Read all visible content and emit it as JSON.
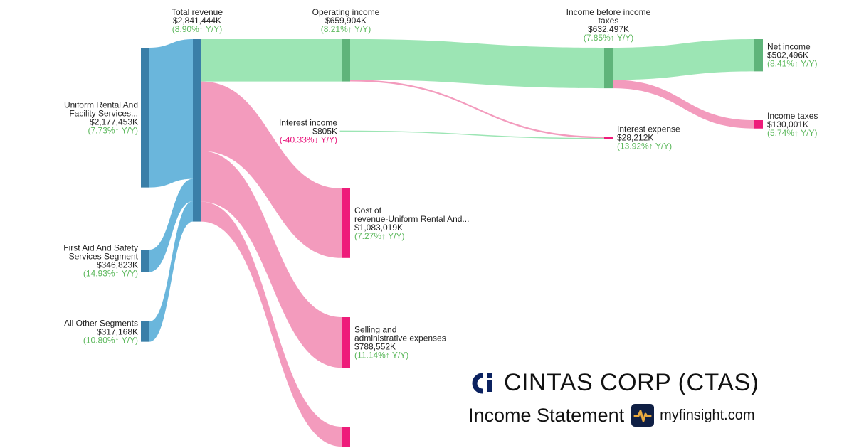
{
  "company": {
    "name": "CINTAS CORP (CTAS)",
    "subtitle": "Income Statement",
    "site": "myfinsight.com"
  },
  "colors": {
    "revenue_node": "#3a7fa8",
    "revenue_link": "#6ab6dc",
    "profit_node": "#5fb47a",
    "profit_link": "#9ce5b4",
    "cost_node": "#ee1c7a",
    "cost_link": "#f39bbd",
    "growth_up": "#5cb85c",
    "growth_down": "#e8127a",
    "brand_navy": "#0b2260",
    "icon_bg": "#0f1f44",
    "icon_accent": "#e9a93f"
  },
  "chart_data": {
    "type": "sankey",
    "units": "thousands USD",
    "nodes": [
      {
        "id": "uniform",
        "label_lines": [
          "Uniform Rental And",
          "Facility Services..."
        ],
        "value_text": "$2,177,453K",
        "growth_text": "(7.73%↑ Y/Y)",
        "growth_dir": "up",
        "value": 2177453
      },
      {
        "id": "firstaid",
        "label_lines": [
          "First Aid And Safety",
          "Services Segment"
        ],
        "value_text": "$346,823K",
        "growth_text": "(14.93%↑ Y/Y)",
        "growth_dir": "up",
        "value": 346823
      },
      {
        "id": "other",
        "label_lines": [
          "All Other Segments"
        ],
        "value_text": "$317,168K",
        "growth_text": "(10.80%↑ Y/Y)",
        "growth_dir": "up",
        "value": 317168
      },
      {
        "id": "revenue",
        "label_lines": [
          "Total revenue"
        ],
        "value_text": "$2,841,444K",
        "growth_text": "(8.90%↑ Y/Y)",
        "growth_dir": "up",
        "value": 2841444
      },
      {
        "id": "opinc",
        "label_lines": [
          "Operating income"
        ],
        "value_text": "$659,904K",
        "growth_text": "(8.21%↑ Y/Y)",
        "growth_dir": "up",
        "value": 659904
      },
      {
        "id": "intinc",
        "label_lines": [
          "Interest income"
        ],
        "value_text": "$805K",
        "growth_text": "(-40.33%↓ Y/Y)",
        "growth_dir": "down",
        "value": 805
      },
      {
        "id": "cor",
        "label_lines": [
          "Cost of",
          "revenue-Uniform Rental And..."
        ],
        "value_text": "$1,083,019K",
        "growth_text": "(7.27%↑ Y/Y)",
        "growth_dir": "up",
        "value": 1083019
      },
      {
        "id": "sga",
        "label_lines": [
          "Selling and",
          "administrative expenses"
        ],
        "value_text": "$788,552K",
        "growth_text": "(11.14%↑ Y/Y)",
        "growth_dir": "up",
        "value": 788552
      },
      {
        "id": "cor2",
        "label_lines": [],
        "value_text": "",
        "growth_text": "",
        "growth_dir": "up",
        "value": 310000
      },
      {
        "id": "ibt",
        "label_lines": [
          "Income before income",
          "taxes"
        ],
        "value_text": "$632,497K",
        "growth_text": "(7.85%↑ Y/Y)",
        "growth_dir": "up",
        "value": 632497
      },
      {
        "id": "intexp",
        "label_lines": [
          "Interest expense"
        ],
        "value_text": "$28,212K",
        "growth_text": "(13.92%↑ Y/Y)",
        "growth_dir": "up",
        "value": 28212
      },
      {
        "id": "netinc",
        "label_lines": [
          "Net income"
        ],
        "value_text": "$502,496K",
        "growth_text": "(8.41%↑ Y/Y)",
        "growth_dir": "up",
        "value": 502496
      },
      {
        "id": "tax",
        "label_lines": [
          "Income taxes"
        ],
        "value_text": "$130,001K",
        "growth_text": "(5.74%↑ Y/Y)",
        "growth_dir": "up",
        "value": 130001
      }
    ],
    "links": [
      {
        "source": "uniform",
        "target": "revenue",
        "value": 2177453
      },
      {
        "source": "firstaid",
        "target": "revenue",
        "value": 346823
      },
      {
        "source": "other",
        "target": "revenue",
        "value": 317168
      },
      {
        "source": "revenue",
        "target": "opinc",
        "value": 659904
      },
      {
        "source": "revenue",
        "target": "cor",
        "value": 1083019
      },
      {
        "source": "revenue",
        "target": "sga",
        "value": 788552
      },
      {
        "source": "revenue",
        "target": "cor2",
        "value": 310000
      },
      {
        "source": "opinc",
        "target": "ibt",
        "value": 632497
      },
      {
        "source": "opinc",
        "target": "intexp",
        "value": 27407
      },
      {
        "source": "intinc",
        "target": "intexp",
        "value": 805
      },
      {
        "source": "ibt",
        "target": "netinc",
        "value": 502496
      },
      {
        "source": "ibt",
        "target": "tax",
        "value": 130001
      }
    ]
  }
}
